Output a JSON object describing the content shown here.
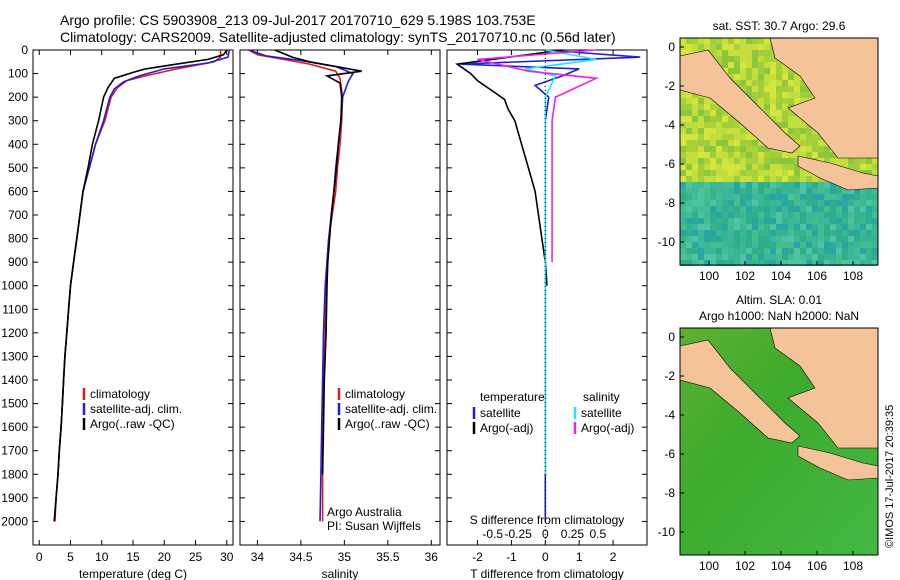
{
  "header": {
    "line1": "Argo profile: CS 5903908_213 09-Jul-2017 20170710_629 5.198S 103.753E",
    "line2": "Climatology: CARS2009. Satellite-adjusted climatology: synTS_20170710.nc (0.56d later)"
  },
  "colors": {
    "clim": "#e31a1c",
    "sat": "#1f1fd6",
    "argo": "#000000",
    "sat_sal": "#22e5f0",
    "argo_sal": "#ee22ee",
    "land": "#f5c39a"
  },
  "chart_data": [
    {
      "type": "line",
      "name": "temperature-profile",
      "xlabel": "temperature (deg C)",
      "ylabel": "",
      "xlim": [
        -1,
        31
      ],
      "ylim": [
        2100,
        0
      ],
      "xticks": [
        0,
        5,
        10,
        15,
        20,
        25,
        30
      ],
      "yticks": [
        0,
        100,
        200,
        300,
        400,
        500,
        600,
        700,
        800,
        900,
        1000,
        1100,
        1200,
        1300,
        1400,
        1500,
        1600,
        1700,
        1800,
        1900,
        2000
      ],
      "legend": [
        "climatology",
        "satellite-adj. clim.",
        "Argo(..raw -QC)"
      ],
      "series": [
        {
          "name": "climatology",
          "color": "#e31a1c",
          "points": [
            [
              29,
              0
            ],
            [
              29,
              30
            ],
            [
              28,
              50
            ],
            [
              22,
              80
            ],
            [
              17,
              110
            ],
            [
              14,
              130
            ],
            [
              12.5,
              160
            ],
            [
              11.5,
              200
            ],
            [
              10.5,
              300
            ],
            [
              9,
              400
            ],
            [
              8,
              500
            ],
            [
              7,
              600
            ],
            [
              6.5,
              700
            ],
            [
              6,
              800
            ],
            [
              5.5,
              900
            ],
            [
              5,
              1000
            ],
            [
              4.7,
              1100
            ],
            [
              4.4,
              1200
            ],
            [
              4.1,
              1300
            ],
            [
              3.9,
              1400
            ],
            [
              3.7,
              1500
            ],
            [
              3.5,
              1600
            ],
            [
              3.2,
              1700
            ],
            [
              3,
              1800
            ],
            [
              2.7,
              1900
            ],
            [
              2.5,
              2000
            ]
          ]
        },
        {
          "name": "satellite-adj. clim.",
          "color": "#1f1fd6",
          "points": [
            [
              30.4,
              0
            ],
            [
              30.2,
              30
            ],
            [
              27,
              55
            ],
            [
              20,
              80
            ],
            [
              16,
              110
            ],
            [
              13.5,
              135
            ],
            [
              12,
              165
            ],
            [
              11.3,
              200
            ],
            [
              10.3,
              300
            ],
            [
              9,
              400
            ],
            [
              8,
              500
            ],
            [
              7,
              600
            ],
            [
              6.5,
              700
            ],
            [
              6,
              800
            ],
            [
              5.5,
              900
            ],
            [
              5,
              1000
            ],
            [
              4.7,
              1100
            ],
            [
              4.4,
              1200
            ],
            [
              4.1,
              1300
            ],
            [
              3.9,
              1400
            ],
            [
              3.7,
              1500
            ],
            [
              3.5,
              1600
            ],
            [
              3.2,
              1700
            ],
            [
              3,
              1800
            ],
            [
              2.7,
              1900
            ],
            [
              2.4,
              2000
            ]
          ]
        },
        {
          "name": "Argo(..raw -QC)",
          "color": "#000000",
          "points": [
            [
              30,
              0
            ],
            [
              29.5,
              20
            ],
            [
              27,
              40
            ],
            [
              22,
              60
            ],
            [
              17,
              80
            ],
            [
              15,
              95
            ],
            [
              12,
              120
            ],
            [
              11,
              160
            ],
            [
              10.3,
              200
            ],
            [
              9.5,
              300
            ],
            [
              8.5,
              400
            ],
            [
              7.8,
              500
            ],
            [
              7,
              600
            ],
            [
              6.5,
              700
            ],
            [
              6,
              800
            ],
            [
              5.5,
              900
            ],
            [
              5,
              1000
            ],
            [
              4.7,
              1100
            ],
            [
              4.4,
              1200
            ],
            [
              4.1,
              1300
            ],
            [
              3.9,
              1400
            ],
            [
              3.7,
              1500
            ],
            [
              3.5,
              1600
            ],
            [
              3.2,
              1700
            ],
            [
              3,
              1800
            ],
            [
              2.7,
              1900
            ],
            [
              2.4,
              2000
            ]
          ]
        }
      ]
    },
    {
      "type": "line",
      "name": "salinity-profile",
      "xlabel": "salinity",
      "ylabel": "",
      "xlim": [
        33.8,
        36.1
      ],
      "ylim": [
        2100,
        0
      ],
      "xticks": [
        34,
        34.5,
        35,
        35.5,
        36
      ],
      "legend": [
        "climatology",
        "satellite-adj. clim.",
        "Argo(..raw -QC)"
      ],
      "credit": [
        "Argo Australia",
        "PI: Susan Wijffels"
      ],
      "series": [
        {
          "name": "climatology",
          "color": "#e31a1c",
          "points": [
            [
              33.9,
              0
            ],
            [
              34,
              20
            ],
            [
              34.3,
              40
            ],
            [
              34.6,
              60
            ],
            [
              34.9,
              90
            ],
            [
              34.95,
              120
            ],
            [
              34.98,
              200
            ],
            [
              34.97,
              300
            ],
            [
              34.95,
              400
            ],
            [
              34.92,
              500
            ],
            [
              34.9,
              600
            ],
            [
              34.86,
              700
            ],
            [
              34.82,
              800
            ],
            [
              34.8,
              900
            ],
            [
              34.79,
              1000
            ],
            [
              34.78,
              1200
            ],
            [
              34.76,
              1400
            ],
            [
              34.75,
              1600
            ],
            [
              34.75,
              1800
            ],
            [
              34.75,
              2000
            ]
          ]
        },
        {
          "name": "satellite-adj. clim.",
          "color": "#1f1fd6",
          "points": [
            [
              33.9,
              0
            ],
            [
              34.1,
              25
            ],
            [
              34.5,
              45
            ],
            [
              34.9,
              70
            ],
            [
              35.1,
              100
            ],
            [
              35.05,
              130
            ],
            [
              34.98,
              200
            ],
            [
              34.96,
              300
            ],
            [
              34.93,
              400
            ],
            [
              34.9,
              500
            ],
            [
              34.88,
              600
            ],
            [
              34.85,
              700
            ],
            [
              34.82,
              800
            ],
            [
              34.8,
              900
            ],
            [
              34.78,
              1000
            ],
            [
              34.76,
              1200
            ],
            [
              34.75,
              1400
            ],
            [
              34.74,
              1600
            ],
            [
              34.73,
              1800
            ],
            [
              34.72,
              2000
            ]
          ]
        },
        {
          "name": "Argo(..raw -QC)",
          "color": "#000000",
          "points": [
            [
              34.2,
              0
            ],
            [
              34.4,
              30
            ],
            [
              34.6,
              50
            ],
            [
              35.2,
              90
            ],
            [
              34.8,
              110
            ],
            [
              34.95,
              140
            ],
            [
              34.96,
              170
            ],
            [
              34.97,
              200
            ],
            [
              34.96,
              300
            ],
            [
              34.93,
              400
            ],
            [
              34.91,
              500
            ],
            [
              34.88,
              600
            ],
            [
              34.85,
              700
            ],
            [
              34.83,
              800
            ],
            [
              34.81,
              900
            ],
            [
              34.8,
              1000
            ],
            [
              34.79,
              1200
            ],
            [
              34.77,
              1400
            ],
            [
              34.76,
              1600
            ],
            [
              34.75,
              1800
            ]
          ]
        }
      ]
    },
    {
      "type": "line",
      "name": "difference-profile",
      "xlabel": "T difference from climatology",
      "x2label": "S difference from climatology",
      "xlim": [
        -2.9,
        3.0
      ],
      "ylim": [
        2100,
        0
      ],
      "xticks": [
        -2,
        -1,
        0,
        1,
        2
      ],
      "x2ticks": [
        "-0.5",
        "-0.25",
        "0",
        "0.25",
        "0.5"
      ],
      "legend_left_title": "temperature",
      "legend_right_title": "salinity",
      "legend": [
        "satellite",
        "Argo(-adj)",
        "satellite",
        "Argo(-adj)"
      ],
      "series": [
        {
          "name": "satellite",
          "color": "#1f1fd6",
          "points": [
            [
              0,
              0
            ],
            [
              2.8,
              30
            ],
            [
              -2.5,
              60
            ],
            [
              1,
              80
            ],
            [
              0.5,
              110
            ],
            [
              -0.3,
              150
            ],
            [
              0.1,
              200
            ],
            [
              0,
              300
            ],
            [
              0,
              500
            ],
            [
              0,
              800
            ],
            [
              0,
              1000
            ],
            [
              0,
              1500
            ],
            [
              0,
              2000
            ]
          ]
        },
        {
          "name": "Argo(-adj)",
          "color": "#000000",
          "points": [
            [
              0.5,
              0
            ],
            [
              -2.6,
              60
            ],
            [
              -2.2,
              100
            ],
            [
              -2,
              130
            ],
            [
              -1.8,
              150
            ],
            [
              -1.5,
              180
            ],
            [
              -1.2,
              210
            ],
            [
              -1.1,
              250
            ],
            [
              -0.9,
              300
            ],
            [
              -0.7,
              400
            ],
            [
              -0.5,
              500
            ],
            [
              -0.3,
              600
            ],
            [
              -0.2,
              700
            ],
            [
              -0.1,
              800
            ],
            [
              0,
              900
            ],
            [
              0.05,
              1000
            ]
          ]
        },
        {
          "name": "satellite",
          "color": "#22e5f0",
          "points": [
            [
              0,
              0
            ],
            [
              1.5,
              40
            ],
            [
              -0.6,
              80
            ],
            [
              0.3,
              110
            ],
            [
              0,
              200
            ],
            [
              0,
              400
            ],
            [
              0,
              800
            ],
            [
              0,
              1300
            ],
            [
              0,
              1800
            ]
          ]
        },
        {
          "name": "Argo(-adj)",
          "color": "#ee22ee",
          "points": [
            [
              1.5,
              0
            ],
            [
              -2,
              40
            ],
            [
              -0.5,
              90
            ],
            [
              1.5,
              120
            ],
            [
              0.3,
              200
            ],
            [
              0.2,
              300
            ],
            [
              0.2,
              500
            ],
            [
              0.2,
              700
            ],
            [
              0.2,
              900
            ]
          ]
        }
      ]
    },
    {
      "type": "heatmap",
      "name": "sst-map",
      "title": "sat. SST: 30.7 Argo: 29.6",
      "xticks": [
        "100",
        "102",
        "104",
        "106",
        "108"
      ],
      "yticks": [
        "0",
        "-2",
        "-4",
        "-6",
        "-8",
        "-10"
      ]
    },
    {
      "type": "heatmap",
      "name": "sla-map",
      "title": "Altim. SLA: 0.01",
      "subtitle": "Argo h1000: NaN h2000: NaN",
      "xticks": [
        "100",
        "102",
        "104",
        "106",
        "108"
      ],
      "yticks": [
        "0",
        "-2",
        "-4",
        "-6",
        "-8",
        "-10"
      ]
    }
  ],
  "footer": {
    "timestamp": "©IMOS 17-Jul-2017 20:39:35"
  }
}
